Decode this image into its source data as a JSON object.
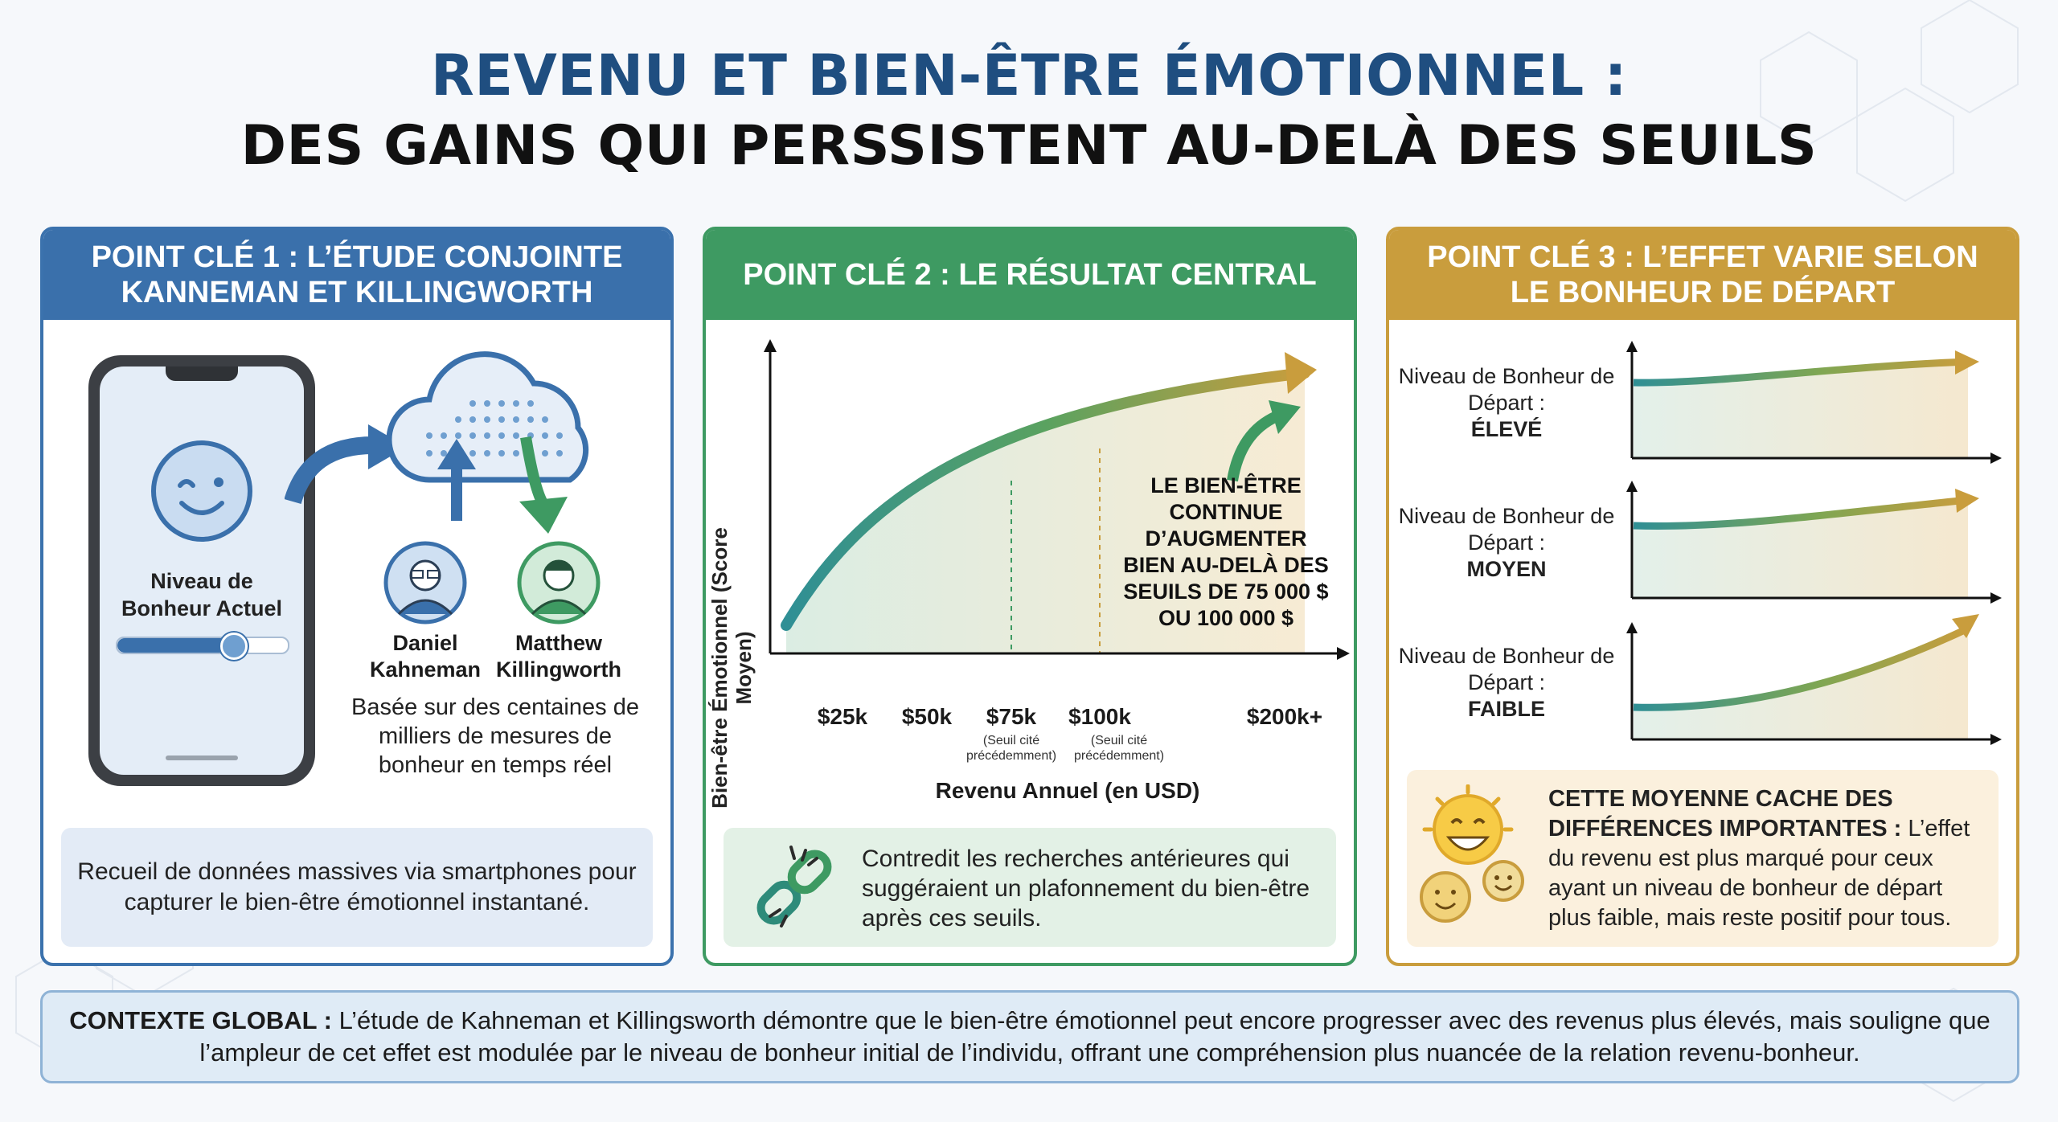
{
  "title": {
    "line1": "REVENU ET BIEN-ÊTRE ÉMOTIONNEL :",
    "line2": "DES GAINS QUI PERSSISTENT AU-DELÀ DES SEUILS"
  },
  "panel1": {
    "header": "POINT CLÉ 1 : L’ÉTUDE CONJOINTE KANNEMAN ET KILLINGWORTH",
    "phone_label": "Niveau de Bonheur Actuel",
    "slider_level": 0.68,
    "researcher1": "Daniel Kahneman",
    "researcher2": "Matthew Killingworth",
    "caption": "Basée sur des centaines de milliers de mesures de bonheur en temps réel",
    "note": "Recueil de données massives via smartphones pour capturer le bien-être émotionnel instantané."
  },
  "panel2": {
    "header": "POINT CLÉ 2 : LE RÉSULTAT CENTRAL",
    "ylabel": "Bien-être Émotionnel (Score Moyen)",
    "xlabel": "Revenu Annuel (en USD)",
    "ticks": [
      "$25k",
      "$50k",
      "$75k",
      "$100k",
      "$200k+"
    ],
    "tick_note_75": "(Seuil cité précédemment)",
    "tick_note_100": "(Seuil cité précédemment)",
    "annotation": "LE BIEN-ÊTRE CONTINUE D’AUGMENTER BIEN AU-DELÀ DES SEUILS DE 75 000 $ OU 100 000 $",
    "note": "Contredit les recherches antérieures qui suggéraient un plafonnement du bien-être après ces seuils."
  },
  "panel3": {
    "header": "POINT CLÉ 3 : L’EFFET VARIE SELON LE BONHEUR DE DÉPART",
    "rows": [
      {
        "label_prefix": "Niveau de Bonheur de Départ :",
        "level": "ÉLEVÉ"
      },
      {
        "label_prefix": "Niveau de Bonheur de Départ :",
        "level": "MOYEN"
      },
      {
        "label_prefix": "Niveau de Bonheur de Départ :",
        "level": "FAIBLE"
      }
    ],
    "note_bold": "CETTE MOYENNE CACHE DES DIFFÉRENCES IMPORTANTES :",
    "note_text": "L’effet du revenu est plus marqué pour ceux ayant un niveau de bonheur de départ plus faible, mais reste positif pour tous."
  },
  "bottom": {
    "bold": "CONTEXTE GLOBAL :",
    "text": "L’étude de Kahneman et Killingsworth démontre que le bien-être émotionnel peut encore progresser avec des revenus plus élevés, mais souligne que l’ampleur de cet effet est modulée par le niveau de bonheur initial de l’individu, offrant une compréhension plus nuancée de la relation revenu-bonheur."
  },
  "colors": {
    "blue": "#3a70ab",
    "green": "#3e9a62",
    "gold": "#c99d3d",
    "teal": "#2f8f95"
  }
}
